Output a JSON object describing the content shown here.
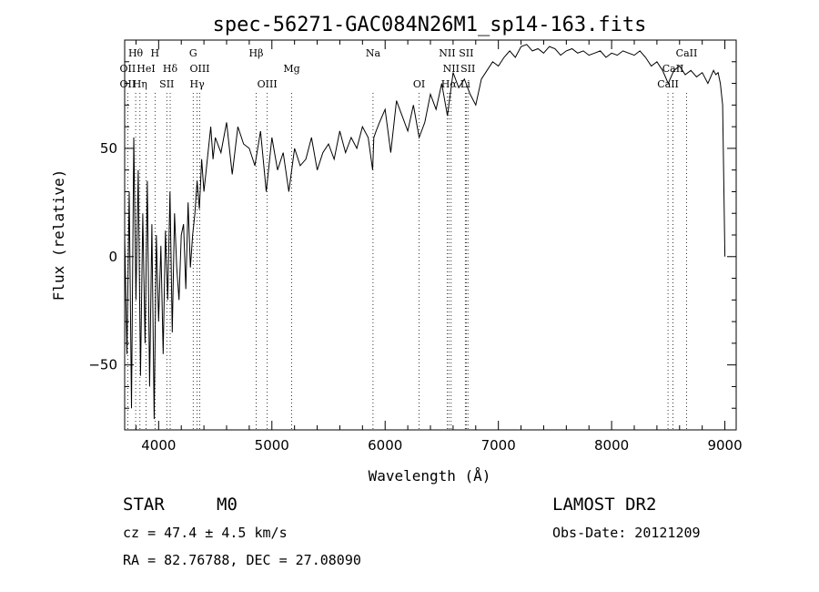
{
  "chart_data": {
    "type": "line",
    "title": "spec-56271-GAC084N26M1_sp14-163.fits",
    "xlabel": "Wavelength (Å)",
    "ylabel": "Flux (relative)",
    "xlim": [
      3700,
      9100
    ],
    "ylim": [
      -80,
      100
    ],
    "xticks": [
      {
        "value": 4000,
        "label": "4000"
      },
      {
        "value": 5000,
        "label": "5000"
      },
      {
        "value": 6000,
        "label": "6000"
      },
      {
        "value": 7000,
        "label": "7000"
      },
      {
        "value": 8000,
        "label": "8000"
      },
      {
        "value": 9000,
        "label": "9000"
      }
    ],
    "yticks": [
      {
        "value": -50,
        "label": "−50"
      },
      {
        "value": 0,
        "label": "0"
      },
      {
        "value": 50,
        "label": "50"
      }
    ],
    "spectrum": {
      "x": [
        3700,
        3720,
        3740,
        3760,
        3780,
        3800,
        3820,
        3840,
        3860,
        3880,
        3900,
        3920,
        3940,
        3960,
        3980,
        4000,
        4020,
        4040,
        4060,
        4080,
        4100,
        4120,
        4140,
        4160,
        4180,
        4200,
        4220,
        4240,
        4260,
        4280,
        4300,
        4320,
        4340,
        4360,
        4380,
        4400,
        4420,
        4440,
        4460,
        4480,
        4500,
        4550,
        4600,
        4650,
        4700,
        4750,
        4800,
        4850,
        4900,
        4950,
        5000,
        5050,
        5100,
        5150,
        5200,
        5250,
        5300,
        5350,
        5400,
        5450,
        5500,
        5550,
        5600,
        5650,
        5700,
        5750,
        5800,
        5850,
        5890,
        5900,
        5920,
        5950,
        6000,
        6050,
        6100,
        6150,
        6200,
        6250,
        6300,
        6350,
        6400,
        6450,
        6500,
        6550,
        6600,
        6650,
        6700,
        6750,
        6800,
        6850,
        6900,
        6950,
        7000,
        7050,
        7100,
        7150,
        7200,
        7250,
        7300,
        7350,
        7400,
        7450,
        7500,
        7550,
        7600,
        7650,
        7700,
        7750,
        7800,
        7850,
        7900,
        7950,
        8000,
        8050,
        8100,
        8150,
        8200,
        8250,
        8300,
        8350,
        8400,
        8450,
        8500,
        8550,
        8600,
        8650,
        8700,
        8750,
        8800,
        8850,
        8900,
        8920,
        8940,
        8960,
        8980,
        9000
      ],
      "y": [
        10,
        -45,
        30,
        -70,
        55,
        -20,
        40,
        -55,
        20,
        -40,
        35,
        -60,
        15,
        -75,
        10,
        -30,
        5,
        -45,
        12,
        -20,
        30,
        -35,
        20,
        -5,
        -20,
        10,
        15,
        -15,
        25,
        -5,
        10,
        20,
        35,
        22,
        45,
        30,
        40,
        50,
        60,
        45,
        55,
        48,
        62,
        38,
        60,
        52,
        50,
        42,
        58,
        30,
        55,
        40,
        48,
        30,
        50,
        42,
        45,
        55,
        40,
        48,
        52,
        45,
        58,
        48,
        55,
        50,
        60,
        55,
        40,
        55,
        58,
        62,
        68,
        48,
        72,
        65,
        58,
        70,
        55,
        62,
        75,
        68,
        80,
        65,
        85,
        78,
        82,
        75,
        70,
        82,
        86,
        90,
        88,
        92,
        95,
        92,
        97,
        98,
        95,
        96,
        94,
        97,
        96,
        93,
        95,
        96,
        94,
        95,
        93,
        94,
        95,
        92,
        94,
        93,
        95,
        94,
        93,
        95,
        92,
        88,
        90,
        86,
        80,
        86,
        88,
        84,
        86,
        83,
        85,
        80,
        86,
        84,
        85,
        80,
        70,
        0
      ]
    },
    "lines": [
      {
        "w": 3797,
        "label": "Hθ",
        "row": 1
      },
      {
        "w": 3727,
        "label": "OII",
        "row": 2
      },
      {
        "w": 3889,
        "label": "HeI",
        "row": 2
      },
      {
        "w": 3727,
        "label": "OII",
        "row": 3
      },
      {
        "w": 3835,
        "label": "Hη",
        "row": 3
      },
      {
        "w": 3968,
        "label": "H",
        "row": 1
      },
      {
        "w": 4102,
        "label": "Hδ",
        "row": 2
      },
      {
        "w": 4072,
        "label": "SII",
        "row": 3
      },
      {
        "w": 4305,
        "label": "G",
        "row": 1
      },
      {
        "w": 4363,
        "label": "OIII",
        "row": 2
      },
      {
        "w": 4340,
        "label": "Hγ",
        "row": 3
      },
      {
        "w": 4861,
        "label": "Hβ",
        "row": 1
      },
      {
        "w": 4959,
        "label": "OIII",
        "row": 3
      },
      {
        "w": 5175,
        "label": "Mg",
        "row": 2
      },
      {
        "w": 5893,
        "label": "Na",
        "row": 1
      },
      {
        "w": 6300,
        "label": "OI",
        "row": 3
      },
      {
        "w": 6548,
        "label": "NII",
        "row": 1
      },
      {
        "w": 6716,
        "label": "SII",
        "row": 1
      },
      {
        "w": 6583,
        "label": "NII",
        "row": 2
      },
      {
        "w": 6731,
        "label": "SII",
        "row": 2
      },
      {
        "w": 6563,
        "label": "Hα",
        "row": 3
      },
      {
        "w": 6708,
        "label": "Li",
        "row": 3
      },
      {
        "w": 8662,
        "label": "CaII",
        "row": 1
      },
      {
        "w": 8542,
        "label": "CaII",
        "row": 2
      },
      {
        "w": 8498,
        "label": "CaII",
        "row": 3
      }
    ]
  },
  "info": {
    "class": "STAR",
    "subclass": "M0",
    "survey": "LAMOST DR2",
    "cz": "cz = 47.4 ± 4.5 km/s",
    "obs_date": "Obs-Date: 20121209",
    "radec": "RA =  82.76788, DEC =  27.08090"
  }
}
